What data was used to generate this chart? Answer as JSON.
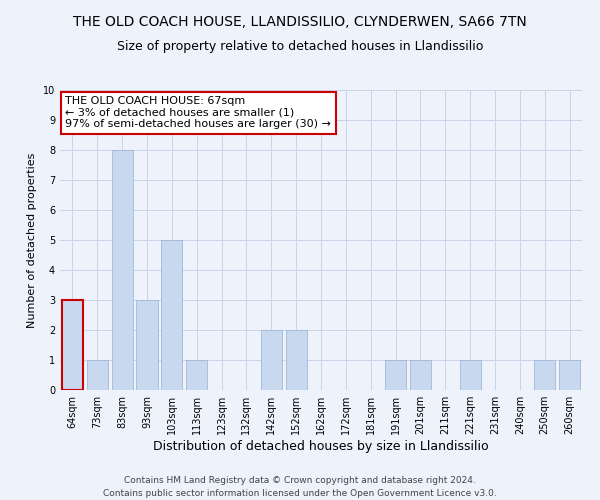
{
  "title": "THE OLD COACH HOUSE, LLANDISSILIO, CLYNDERWEN, SA66 7TN",
  "subtitle": "Size of property relative to detached houses in Llandissilio",
  "xlabel": "Distribution of detached houses by size in Llandissilio",
  "ylabel": "Number of detached properties",
  "categories": [
    "64sqm",
    "73sqm",
    "83sqm",
    "93sqm",
    "103sqm",
    "113sqm",
    "123sqm",
    "132sqm",
    "142sqm",
    "152sqm",
    "162sqm",
    "172sqm",
    "181sqm",
    "191sqm",
    "201sqm",
    "211sqm",
    "221sqm",
    "231sqm",
    "240sqm",
    "250sqm",
    "260sqm"
  ],
  "values": [
    3,
    1,
    8,
    3,
    5,
    1,
    0,
    0,
    2,
    2,
    0,
    0,
    0,
    1,
    1,
    0,
    1,
    0,
    0,
    1,
    1
  ],
  "bar_color": "#c8d8ef",
  "bar_edge_color": "#a0b8d8",
  "highlight_bar_index": 0,
  "highlight_bar_edge_color": "#cc0000",
  "ylim": [
    0,
    10
  ],
  "yticks": [
    0,
    1,
    2,
    3,
    4,
    5,
    6,
    7,
    8,
    9,
    10
  ],
  "grid_color": "#c8d4e8",
  "annotation_title": "THE OLD COACH HOUSE: 67sqm",
  "annotation_line1": "← 3% of detached houses are smaller (1)",
  "annotation_line2": "97% of semi-detached houses are larger (30) →",
  "annotation_box_color": "#ffffff",
  "annotation_box_edge_color": "#cc0000",
  "footer_line1": "Contains HM Land Registry data © Crown copyright and database right 2024.",
  "footer_line2": "Contains public sector information licensed under the Open Government Licence v3.0.",
  "background_color": "#edf2fb",
  "title_fontsize": 10,
  "subtitle_fontsize": 9,
  "ylabel_fontsize": 8,
  "xlabel_fontsize": 9,
  "tick_fontsize": 7,
  "annotation_fontsize": 8,
  "footer_fontsize": 6.5
}
